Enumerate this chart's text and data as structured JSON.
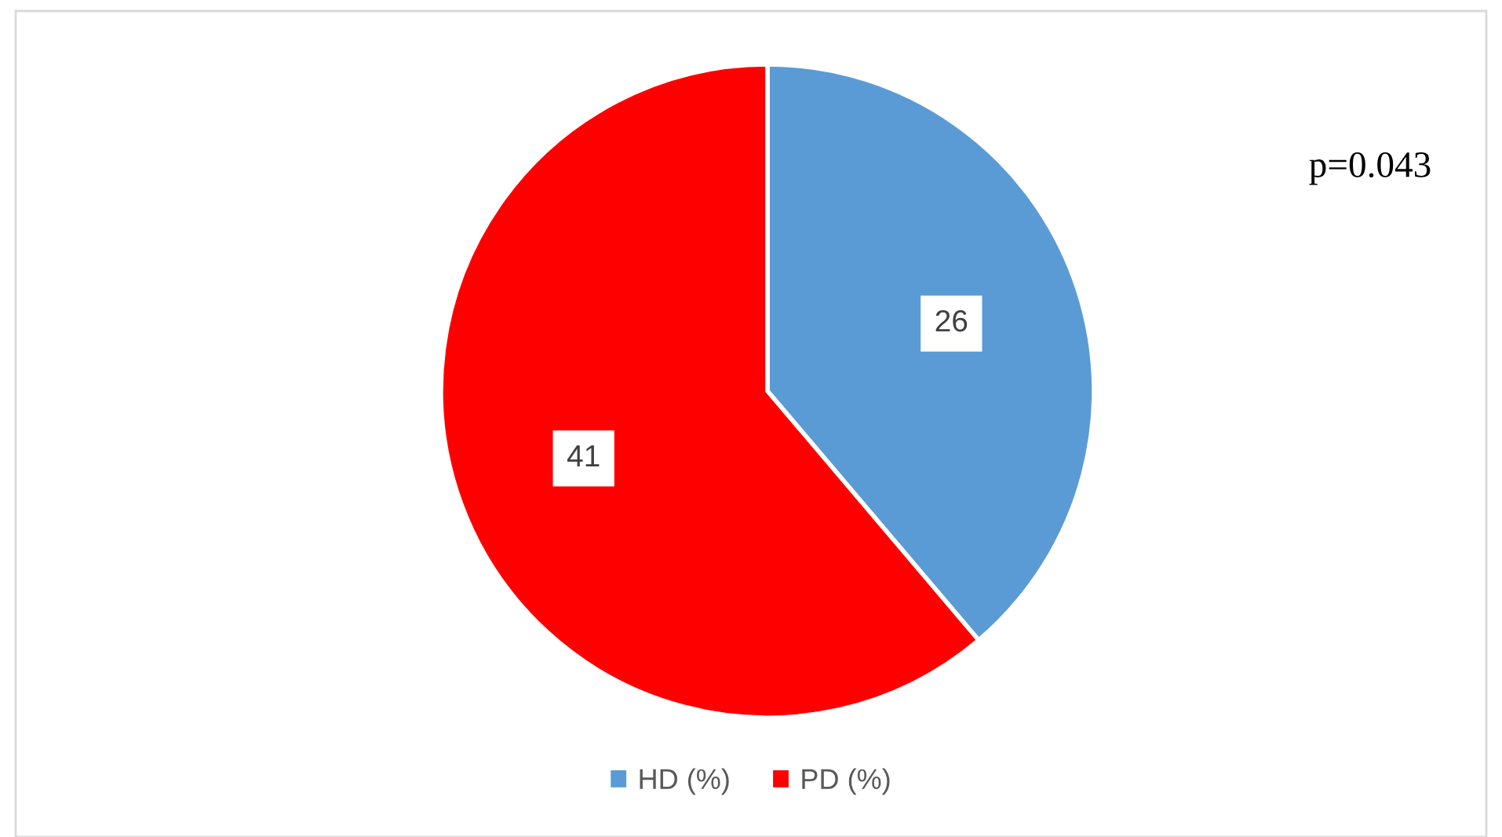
{
  "chart_data": {
    "type": "pie",
    "categories": [
      "HD (%)",
      "PD (%)"
    ],
    "values": [
      26,
      41
    ],
    "colors": [
      "#5b9bd5",
      "#ff0000"
    ],
    "data_labels": true,
    "legend": "bottom",
    "annotations": [
      "p=0.043"
    ]
  }
}
